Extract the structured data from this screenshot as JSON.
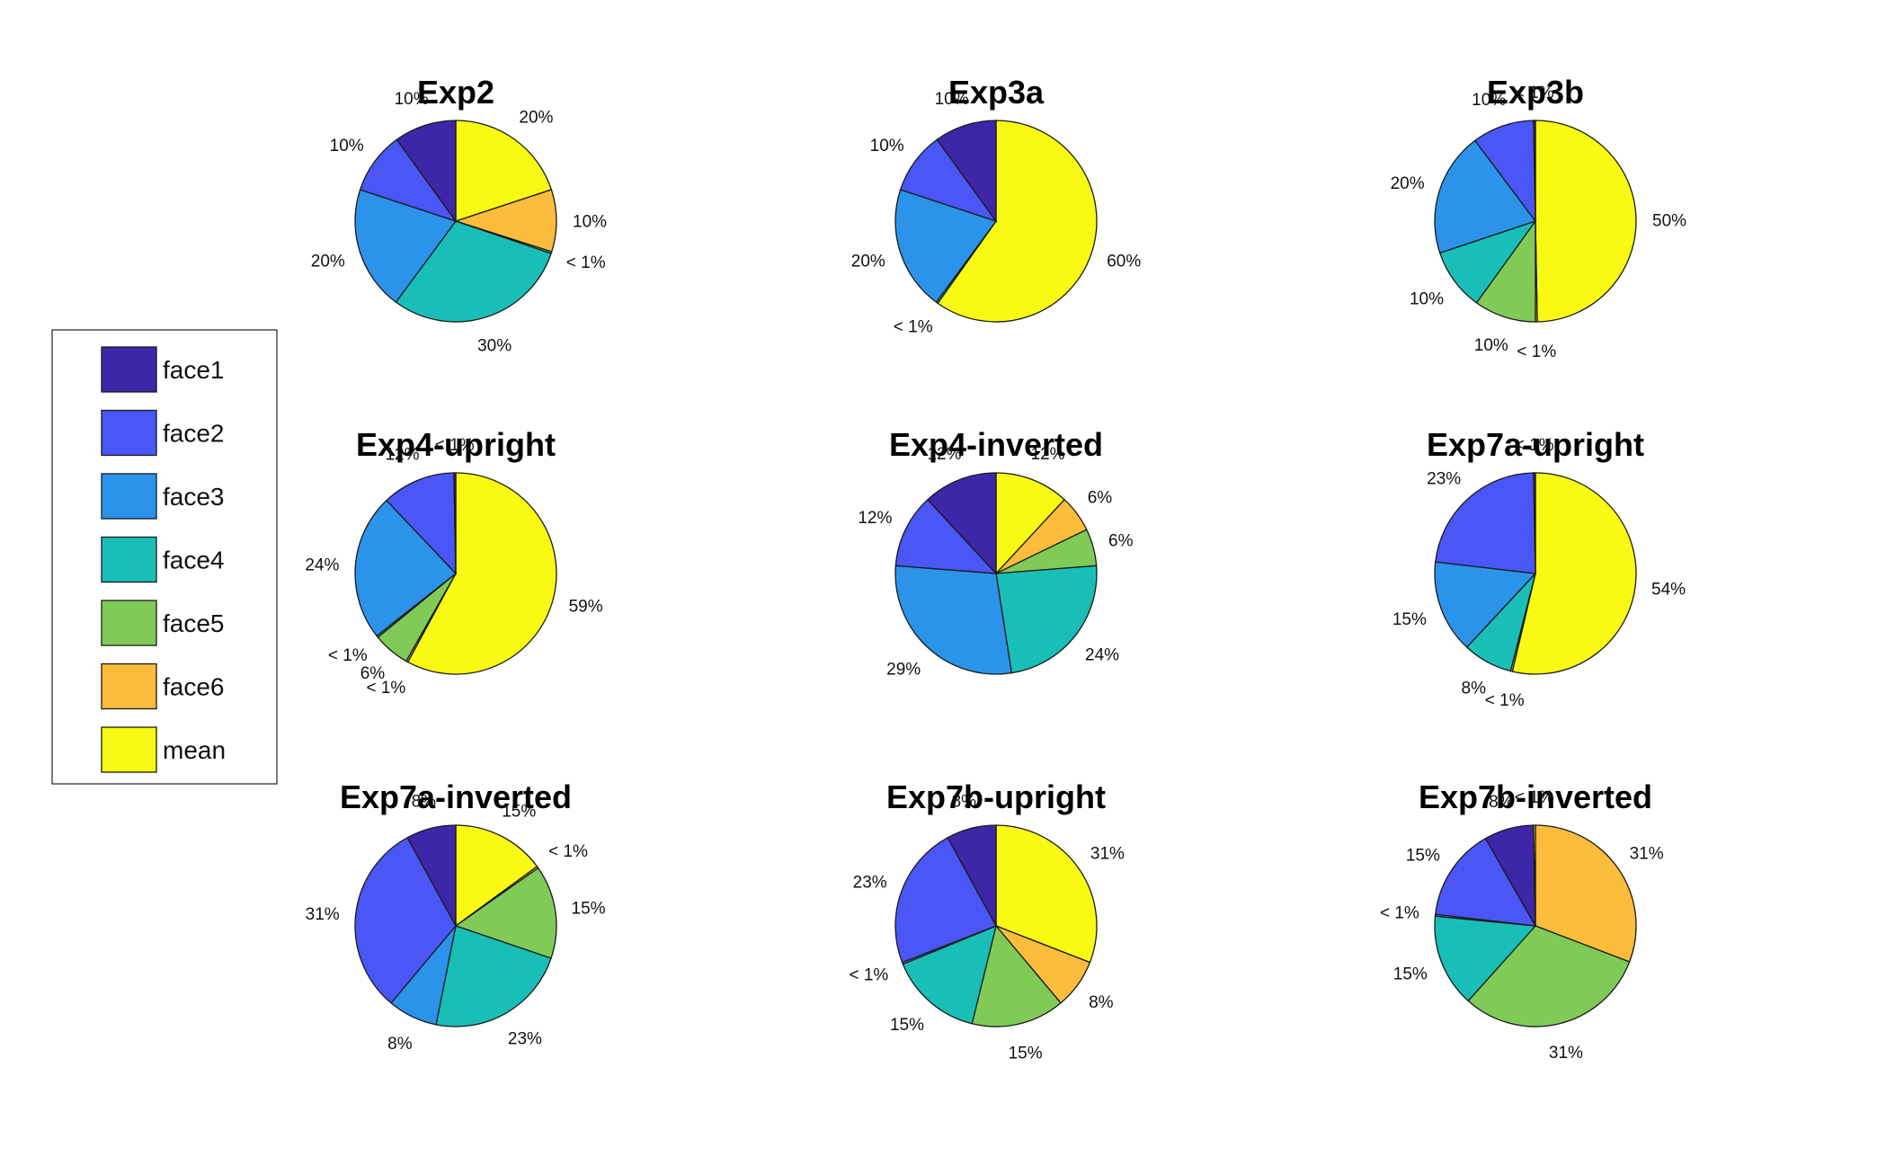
{
  "legend": {
    "items": [
      {
        "key": "face1",
        "label": "face1",
        "color": "#3e26a8"
      },
      {
        "key": "face2",
        "label": "face2",
        "color": "#4a56f5"
      },
      {
        "key": "face3",
        "label": "face3",
        "color": "#2b93e9"
      },
      {
        "key": "face4",
        "label": "face4",
        "color": "#19bfb7"
      },
      {
        "key": "face5",
        "label": "face5",
        "color": "#80cb58"
      },
      {
        "key": "face6",
        "label": "face6",
        "color": "#fcbc3c"
      },
      {
        "key": "mean",
        "label": "mean",
        "color": "#f9fa14"
      }
    ]
  },
  "chart_data": [
    {
      "type": "pie",
      "title": "Exp2",
      "slices": [
        {
          "category": "mean",
          "value": 20,
          "label": "20%"
        },
        {
          "category": "face6",
          "value": 10,
          "label": "10%"
        },
        {
          "category": "face5",
          "value": 0.3,
          "label": "< 1%"
        },
        {
          "category": "face4",
          "value": 30,
          "label": "30%"
        },
        {
          "category": "face3",
          "value": 20,
          "label": "20%"
        },
        {
          "category": "face2",
          "value": 10,
          "label": "10%"
        },
        {
          "category": "face1",
          "value": 10,
          "label": "10%"
        }
      ]
    },
    {
      "type": "pie",
      "title": "Exp3a",
      "slices": [
        {
          "category": "mean",
          "value": 60,
          "label": "60%"
        },
        {
          "category": "face4",
          "value": 0.3,
          "label": "< 1%"
        },
        {
          "category": "face3",
          "value": 20,
          "label": "20%"
        },
        {
          "category": "face2",
          "value": 10,
          "label": "10%"
        },
        {
          "category": "face1",
          "value": 10,
          "label": "10%"
        }
      ]
    },
    {
      "type": "pie",
      "title": "Exp3b",
      "slices": [
        {
          "category": "mean",
          "value": 50,
          "label": "50%"
        },
        {
          "category": "face6",
          "value": 0.3,
          "label": "< 1%"
        },
        {
          "category": "face5",
          "value": 10,
          "label": "10%"
        },
        {
          "category": "face4",
          "value": 10,
          "label": "10%"
        },
        {
          "category": "face3",
          "value": 20,
          "label": "20%"
        },
        {
          "category": "face2",
          "value": 10,
          "label": "10%"
        },
        {
          "category": "face1",
          "value": 0.3,
          "label": "< 1%"
        }
      ]
    },
    {
      "type": "pie",
      "title": "Exp4-upright",
      "slices": [
        {
          "category": "mean",
          "value": 59,
          "label": "59%"
        },
        {
          "category": "face6",
          "value": 0.3,
          "label": "< 1%"
        },
        {
          "category": "face5",
          "value": 6,
          "label": "6%"
        },
        {
          "category": "face4",
          "value": 0.3,
          "label": "< 1%"
        },
        {
          "category": "face3",
          "value": 24,
          "label": "24%"
        },
        {
          "category": "face2",
          "value": 12,
          "label": "12%"
        },
        {
          "category": "face1",
          "value": 0.3,
          "label": "< 1%"
        }
      ]
    },
    {
      "type": "pie",
      "title": "Exp4-inverted",
      "slices": [
        {
          "category": "mean",
          "value": 12,
          "label": "12%"
        },
        {
          "category": "face6",
          "value": 6,
          "label": "6%"
        },
        {
          "category": "face5",
          "value": 6,
          "label": "6%"
        },
        {
          "category": "face4",
          "value": 24,
          "label": "24%"
        },
        {
          "category": "face3",
          "value": 29,
          "label": "29%"
        },
        {
          "category": "face2",
          "value": 12,
          "label": "12%"
        },
        {
          "category": "face1",
          "value": 12,
          "label": "12%"
        }
      ]
    },
    {
      "type": "pie",
      "title": "Exp7a-upright",
      "slices": [
        {
          "category": "mean",
          "value": 54,
          "label": "54%"
        },
        {
          "category": "face5",
          "value": 0.3,
          "label": "< 1%"
        },
        {
          "category": "face4",
          "value": 8,
          "label": "8%"
        },
        {
          "category": "face3",
          "value": 15,
          "label": "15%"
        },
        {
          "category": "face2",
          "value": 23,
          "label": "23%"
        },
        {
          "category": "face1",
          "value": 0.3,
          "label": "< 1%"
        }
      ]
    },
    {
      "type": "pie",
      "title": "Exp7a-inverted",
      "slices": [
        {
          "category": "mean",
          "value": 15,
          "label": "15%"
        },
        {
          "category": "face6",
          "value": 0.3,
          "label": "< 1%"
        },
        {
          "category": "face5",
          "value": 15,
          "label": "15%"
        },
        {
          "category": "face4",
          "value": 23,
          "label": "23%"
        },
        {
          "category": "face3",
          "value": 8,
          "label": "8%"
        },
        {
          "category": "face2",
          "value": 31,
          "label": "31%"
        },
        {
          "category": "face1",
          "value": 8,
          "label": "8%"
        }
      ]
    },
    {
      "type": "pie",
      "title": "Exp7b-upright",
      "slices": [
        {
          "category": "mean",
          "value": 31,
          "label": "31%"
        },
        {
          "category": "face6",
          "value": 8,
          "label": "8%"
        },
        {
          "category": "face5",
          "value": 15,
          "label": "15%"
        },
        {
          "category": "face4",
          "value": 15,
          "label": "15%"
        },
        {
          "category": "face3",
          "value": 0.3,
          "label": "< 1%"
        },
        {
          "category": "face2",
          "value": 23,
          "label": "23%"
        },
        {
          "category": "face1",
          "value": 8,
          "label": "8%"
        }
      ]
    },
    {
      "type": "pie",
      "title": "Exp7b-inverted",
      "slices": [
        {
          "category": "face6",
          "value": 31,
          "label": "31%"
        },
        {
          "category": "face5",
          "value": 31,
          "label": "31%"
        },
        {
          "category": "face4",
          "value": 15,
          "label": "15%"
        },
        {
          "category": "face3",
          "value": 0.3,
          "label": "< 1%"
        },
        {
          "category": "face2",
          "value": 15,
          "label": "15%"
        },
        {
          "category": "face1",
          "value": 8,
          "label": "8%"
        },
        {
          "category": "mean",
          "value": 0.3,
          "label": "< 1%"
        }
      ]
    }
  ]
}
